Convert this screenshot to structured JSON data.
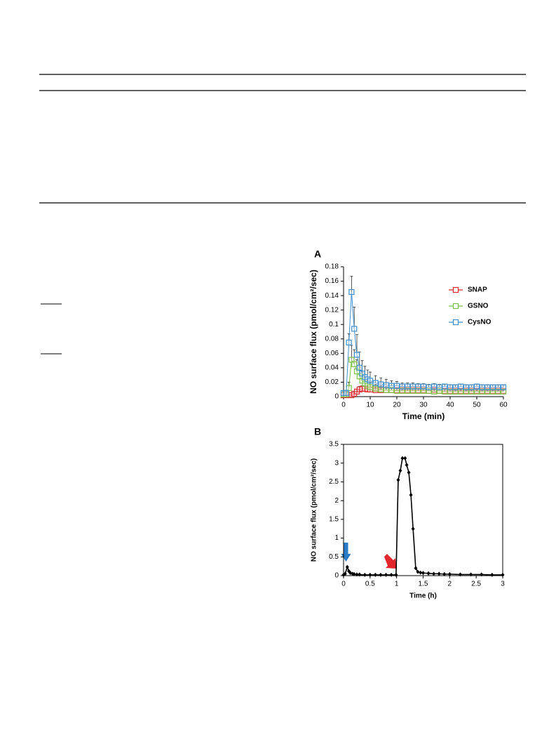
{
  "chart_data": [
    {
      "type": "line",
      "panel": "A",
      "x_label": "Time (min)",
      "y_label": "NO surface flux (pmol/cm²/sec)",
      "x": [
        0,
        1,
        2,
        3,
        4,
        5,
        6,
        7,
        8,
        9,
        10,
        12,
        14,
        16,
        18,
        20,
        22,
        24,
        26,
        28,
        30,
        32,
        34,
        36,
        38,
        40,
        42,
        44,
        46,
        48,
        50,
        52,
        54,
        56,
        58,
        60
      ],
      "series": [
        {
          "name": "SNAP",
          "color": "#e3262a",
          "values": [
            0.002,
            0.002,
            0.002,
            0.002,
            0.004,
            0.007,
            0.01,
            0.011,
            0.011,
            0.01,
            0.01,
            0.009,
            0.009,
            0.009,
            0.009,
            0.009,
            0.009,
            0.009,
            0.009,
            0.009,
            0.009,
            0.008,
            0.009,
            0.008,
            0.008,
            0.008,
            0.008,
            0.008,
            0.008,
            0.008,
            0.008,
            0.008,
            0.008,
            0.008,
            0.008,
            0.008
          ],
          "errors": [
            0.001,
            0.001,
            0.001,
            0.001,
            0.002,
            0.003,
            0.004,
            0.004,
            0.004,
            0.003,
            0.003,
            0.002,
            0.002,
            0.002,
            0.002,
            0.002,
            0.002,
            0.002,
            0.002,
            0.002,
            0.002,
            0.002,
            0.002,
            0.002,
            0.002,
            0.002,
            0.002,
            0.002,
            0.002,
            0.002,
            0.002,
            0.002,
            0.002,
            0.002,
            0.002,
            0.002
          ]
        },
        {
          "name": "GSNO",
          "color": "#7ac143",
          "values": [
            0.003,
            0.003,
            0.012,
            0.051,
            0.045,
            0.035,
            0.028,
            0.022,
            0.018,
            0.015,
            0.013,
            0.011,
            0.01,
            0.009,
            0.009,
            0.008,
            0.008,
            0.008,
            0.008,
            0.008,
            0.008,
            0.008,
            0.007,
            0.008,
            0.007,
            0.007,
            0.007,
            0.007,
            0.007,
            0.007,
            0.007,
            0.007,
            0.007,
            0.007,
            0.007,
            0.007
          ],
          "errors": [
            0.001,
            0.001,
            0.008,
            0.02,
            0.02,
            0.016,
            0.013,
            0.011,
            0.009,
            0.008,
            0.007,
            0.006,
            0.005,
            0.005,
            0.004,
            0.004,
            0.004,
            0.004,
            0.003,
            0.003,
            0.003,
            0.003,
            0.003,
            0.003,
            0.003,
            0.003,
            0.002,
            0.002,
            0.002,
            0.002,
            0.002,
            0.002,
            0.002,
            0.002,
            0.002,
            0.002
          ]
        },
        {
          "name": "CysNO",
          "color": "#3d8fd1",
          "values": [
            0.005,
            0.005,
            0.075,
            0.145,
            0.094,
            0.058,
            0.04,
            0.032,
            0.027,
            0.024,
            0.022,
            0.019,
            0.017,
            0.016,
            0.015,
            0.015,
            0.014,
            0.014,
            0.014,
            0.014,
            0.014,
            0.013,
            0.014,
            0.013,
            0.014,
            0.013,
            0.013,
            0.014,
            0.013,
            0.013,
            0.014,
            0.013,
            0.013,
            0.013,
            0.013,
            0.013
          ],
          "errors": [
            0.002,
            0.002,
            0.012,
            0.022,
            0.03,
            0.028,
            0.022,
            0.018,
            0.015,
            0.013,
            0.012,
            0.01,
            0.009,
            0.008,
            0.007,
            0.006,
            0.005,
            0.005,
            0.005,
            0.004,
            0.004,
            0.004,
            0.004,
            0.004,
            0.003,
            0.003,
            0.003,
            0.003,
            0.003,
            0.003,
            0.003,
            0.003,
            0.003,
            0.003,
            0.003,
            0.003
          ]
        }
      ],
      "xlim": [
        0,
        60
      ],
      "xticks": [
        0,
        10,
        20,
        30,
        40,
        50,
        60
      ],
      "ylim": [
        0,
        0.18
      ],
      "yticks": [
        0,
        0.02,
        0.04,
        0.06,
        0.08,
        0.1,
        0.12,
        0.14,
        0.16,
        0.18
      ],
      "marker": "square",
      "legend": "upper right",
      "box": false
    },
    {
      "type": "line",
      "panel": "B",
      "x_label": "Time (h)",
      "y_label": "NO surface flux (pmol/cm²/sec)",
      "x": [
        0,
        0.03,
        0.07,
        0.1,
        0.13,
        0.17,
        0.2,
        0.25,
        0.3,
        0.4,
        0.5,
        0.6,
        0.7,
        0.8,
        0.9,
        0.99,
        1.03,
        1.07,
        1.11,
        1.16,
        1.19,
        1.23,
        1.27,
        1.31,
        1.36,
        1.4,
        1.45,
        1.5,
        1.6,
        1.7,
        1.8,
        1.9,
        2,
        2.2,
        2.4,
        2.6,
        2.8,
        3
      ],
      "series": [
        {
          "color": "#000000",
          "values": [
            0.02,
            0.05,
            0.23,
            0.12,
            0.07,
            0.05,
            0.04,
            0.03,
            0.03,
            0.02,
            0.02,
            0.02,
            0.02,
            0.02,
            0.02,
            0.02,
            2.55,
            2.8,
            3.13,
            3.13,
            2.95,
            2.75,
            2.15,
            1.25,
            0.2,
            0.1,
            0.08,
            0.07,
            0.06,
            0.05,
            0.05,
            0.04,
            0.04,
            0.03,
            0.03,
            0.03,
            0.02,
            0.02
          ]
        }
      ],
      "xlim": [
        0,
        3
      ],
      "xticks": [
        0,
        0.5,
        1,
        1.5,
        2,
        2.5,
        3
      ],
      "ylim": [
        0,
        3.5
      ],
      "yticks": [
        0,
        0.5,
        1,
        1.5,
        2,
        2.5,
        3,
        3.5
      ],
      "marker": "diamond",
      "box": true
    }
  ]
}
